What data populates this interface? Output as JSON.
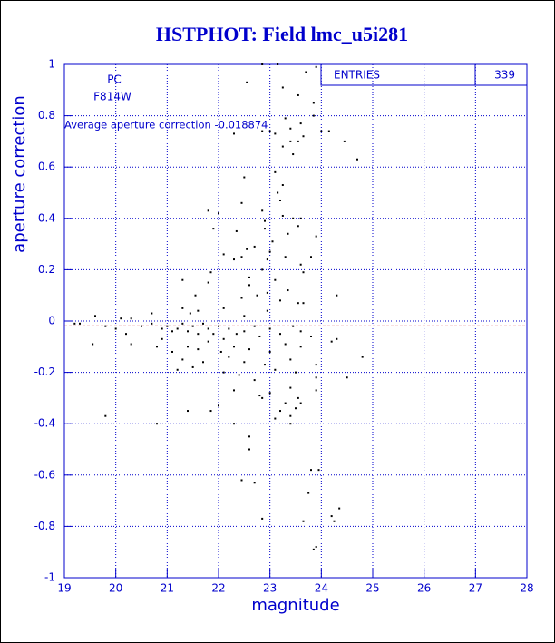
{
  "chart_data": {
    "type": "scatter",
    "title": "HSTPHOT: Field lmc_u5i281",
    "xlabel": "magnitude",
    "ylabel": "aperture correction",
    "xlim": [
      19,
      28
    ],
    "ylim": [
      -1,
      1
    ],
    "xticks": [
      19,
      20,
      21,
      22,
      23,
      24,
      25,
      26,
      27,
      28
    ],
    "yticks": [
      -1,
      -0.8,
      -0.6,
      -0.4,
      -0.2,
      0,
      0.2,
      0.4,
      0.6,
      0.8,
      1
    ],
    "grid": true,
    "annotations": [
      "PC",
      "F814W"
    ],
    "mean_label": "Average aperture correction -0.018874",
    "mean_value": -0.018874,
    "mean_color": "#cc0000",
    "stats_label": "ENTRIES",
    "entries": 339,
    "series": [
      {
        "color": "#000000",
        "x": [
          22.85,
          23.15,
          23.7,
          23.9,
          22.55,
          23.25,
          23.55,
          23.85,
          23.85,
          23.3,
          23.6,
          23.4,
          23.0,
          22.85,
          22.3,
          23.1,
          24.15,
          24.0,
          23.65,
          23.4,
          23.55,
          24.45,
          23.25,
          23.45,
          24.7,
          23.1,
          23.25,
          22.5,
          23.15,
          23.2,
          22.45,
          21.8,
          22.0,
          22.85,
          23.25,
          23.45,
          22.9,
          23.6,
          21.9,
          22.35,
          22.9,
          23.55,
          23.35,
          23.9,
          23.05,
          22.7,
          22.55,
          22.1,
          22.3,
          22.45,
          23.0,
          22.95,
          23.3,
          23.8,
          23.6,
          22.85,
          23.65,
          21.85,
          22.6,
          23.1,
          21.3,
          21.8,
          22.6,
          22.95,
          23.35,
          22.45,
          22.75,
          23.2,
          23.55,
          23.65,
          24.3,
          21.55,
          22.1,
          22.5,
          22.95,
          21.3,
          21.6,
          21.45,
          20.7,
          20.3,
          19.6,
          20.1,
          19.2,
          19.3,
          19.8,
          20.0,
          20.2,
          20.5,
          20.7,
          20.9,
          21.0,
          21.1,
          21.2,
          21.3,
          21.4,
          21.5,
          21.6,
          21.7,
          21.8,
          21.9,
          22.0,
          22.1,
          22.2,
          22.35,
          22.5,
          22.7,
          22.8,
          23.0,
          23.2,
          23.45,
          23.6,
          23.8,
          24.3,
          24.2,
          19.55,
          20.3,
          20.9,
          21.1,
          21.4,
          21.6,
          21.8,
          22.05,
          22.3,
          22.6,
          23.0,
          23.3,
          23.6,
          20.8,
          21.3,
          21.7,
          22.2,
          22.5,
          22.9,
          23.4,
          23.9,
          24.5,
          24.8,
          21.2,
          21.5,
          22.1,
          22.4,
          22.7,
          23.1,
          23.5,
          23.9,
          22.3,
          22.8,
          23.0,
          23.4,
          23.55,
          23.9,
          22.85,
          23.3,
          23.6,
          23.2,
          23.4,
          23.5,
          23.1,
          21.4,
          21.85,
          22.0,
          19.8,
          20.8,
          22.3,
          22.6,
          22.6,
          23.4,
          23.8,
          23.95,
          23.75,
          22.45,
          22.7,
          24.35,
          24.2,
          24.25,
          22.85,
          23.65,
          23.9,
          23.85
        ],
        "values": [
          1.0,
          1.0,
          0.97,
          0.99,
          0.93,
          0.91,
          0.88,
          0.85,
          0.8,
          0.79,
          0.77,
          0.75,
          0.74,
          0.74,
          0.73,
          0.73,
          0.74,
          0.74,
          0.72,
          0.7,
          0.7,
          0.7,
          0.68,
          0.65,
          0.63,
          0.58,
          0.53,
          0.56,
          0.5,
          0.47,
          0.46,
          0.43,
          0.42,
          0.43,
          0.41,
          0.4,
          0.39,
          0.4,
          0.36,
          0.35,
          0.36,
          0.37,
          0.34,
          0.33,
          0.31,
          0.29,
          0.28,
          0.26,
          0.24,
          0.25,
          0.27,
          0.24,
          0.25,
          0.25,
          0.22,
          0.2,
          0.19,
          0.19,
          0.17,
          0.16,
          0.16,
          0.15,
          0.14,
          0.11,
          0.12,
          0.09,
          0.1,
          0.08,
          0.07,
          0.07,
          0.1,
          0.1,
          0.05,
          0.02,
          0.04,
          0.05,
          0.04,
          0.03,
          0.03,
          0.01,
          0.02,
          0.01,
          -0.01,
          -0.01,
          -0.02,
          -0.03,
          -0.05,
          -0.02,
          -0.01,
          -0.03,
          -0.02,
          -0.04,
          -0.03,
          -0.01,
          -0.04,
          -0.02,
          -0.05,
          -0.01,
          -0.03,
          -0.05,
          -0.02,
          -0.07,
          -0.03,
          -0.05,
          -0.04,
          -0.02,
          -0.06,
          -0.03,
          -0.05,
          -0.02,
          -0.04,
          -0.06,
          -0.07,
          -0.08,
          -0.09,
          -0.09,
          -0.07,
          -0.12,
          -0.1,
          -0.11,
          -0.08,
          -0.12,
          -0.1,
          -0.11,
          -0.12,
          -0.09,
          -0.1,
          -0.1,
          -0.15,
          -0.16,
          -0.14,
          -0.16,
          -0.17,
          -0.15,
          -0.17,
          -0.22,
          -0.14,
          -0.19,
          -0.18,
          -0.2,
          -0.21,
          -0.23,
          -0.19,
          -0.2,
          -0.22,
          -0.27,
          -0.29,
          -0.28,
          -0.26,
          -0.3,
          -0.27,
          -0.3,
          -0.32,
          -0.32,
          -0.35,
          -0.37,
          -0.34,
          -0.38,
          -0.35,
          -0.35,
          -0.33,
          -0.37,
          -0.4,
          -0.4,
          -0.45,
          -0.5,
          -0.4,
          -0.58,
          -0.58,
          -0.67,
          -0.62,
          -0.63,
          -0.73,
          -0.76,
          -0.78,
          -0.77,
          -0.78,
          -0.88,
          -0.89
        ]
      }
    ]
  }
}
